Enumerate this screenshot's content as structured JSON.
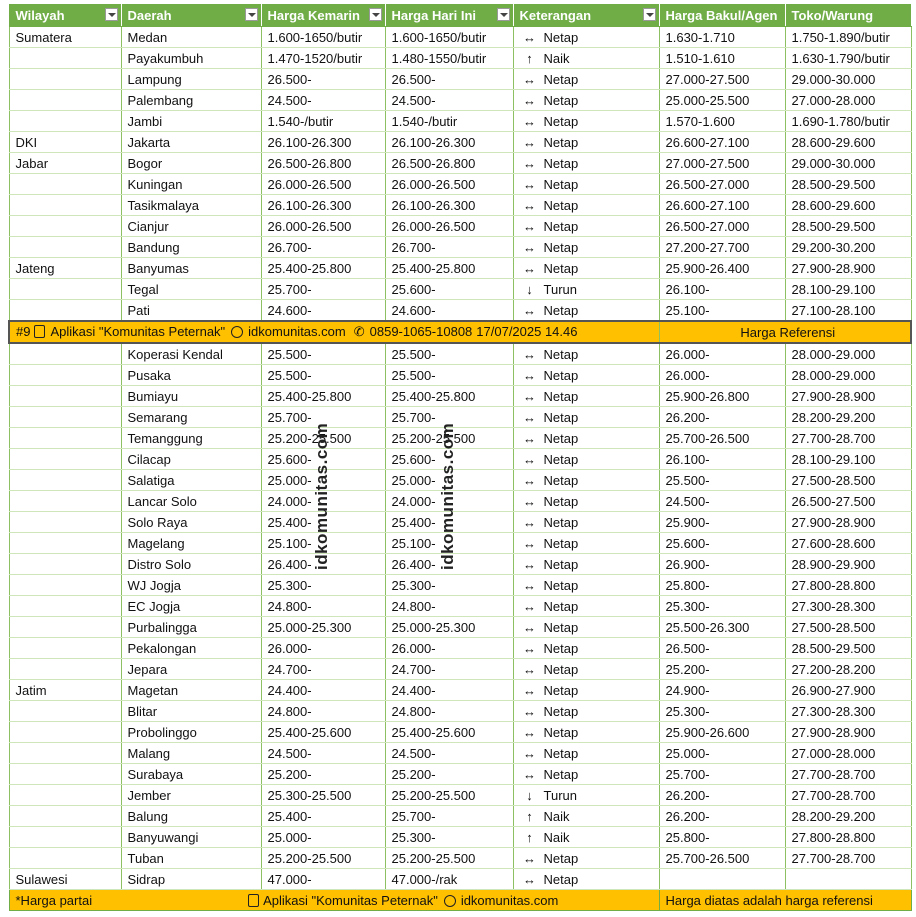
{
  "table": {
    "header": [
      "Wilayah",
      "Daerah",
      "Harga Kemarin",
      "Harga Hari Ini",
      "Keterangan",
      "Harga Bakul/Agen",
      "Toko/Warung"
    ],
    "rows_a": [
      [
        "Sumatera",
        "Medan",
        "1.600-1650/butir",
        "1.600-1650/butir",
        "↔",
        "Netap",
        "1.630-1.710",
        "1.750-1.890/butir"
      ],
      [
        null,
        "Payakumbuh",
        "1.470-1520/butir",
        "1.480-1550/butir",
        "↑",
        "Naik",
        "1.510-1.610",
        "1.630-1.790/butir"
      ],
      [
        null,
        "Lampung",
        "26.500-",
        "26.500-",
        "↔",
        "Netap",
        "27.000-27.500",
        "29.000-30.000"
      ],
      [
        null,
        "Palembang",
        "24.500-",
        "24.500-",
        "↔",
        "Netap",
        "25.000-25.500",
        "27.000-28.000"
      ],
      [
        null,
        "Jambi",
        "1.540-/butir",
        "1.540-/butir",
        "↔",
        "Netap",
        "1.570-1.600",
        "1.690-1.780/butir"
      ],
      [
        "DKI",
        "Jakarta",
        "26.100-26.300",
        "26.100-26.300",
        "↔",
        "Netap",
        "26.600-27.100",
        "28.600-29.600"
      ],
      [
        "Jabar",
        "Bogor",
        "26.500-26.800",
        "26.500-26.800",
        "↔",
        "Netap",
        "27.000-27.500",
        "29.000-30.000"
      ],
      [
        null,
        "Kuningan",
        "26.000-26.500",
        "26.000-26.500",
        "↔",
        "Netap",
        "26.500-27.000",
        "28.500-29.500"
      ],
      [
        null,
        "Tasikmalaya",
        "26.100-26.300",
        "26.100-26.300",
        "↔",
        "Netap",
        "26.600-27.100",
        "28.600-29.600"
      ],
      [
        null,
        "Cianjur",
        "26.000-26.500",
        "26.000-26.500",
        "↔",
        "Netap",
        "26.500-27.000",
        "28.500-29.500"
      ],
      [
        null,
        "Bandung",
        "26.700-",
        "26.700-",
        "↔",
        "Netap",
        "27.200-27.700",
        "29.200-30.200"
      ],
      [
        "Jateng",
        "Banyumas",
        "25.400-25.800",
        "25.400-25.800",
        "↔",
        "Netap",
        "25.900-26.400",
        "27.900-28.900"
      ],
      [
        null,
        "Tegal",
        "25.700-",
        "25.600-",
        "↓",
        "Turun",
        "26.100-",
        "28.100-29.100"
      ],
      [
        null,
        "Pati",
        "24.600-",
        "24.600-",
        "↔",
        "Netap",
        "25.100-",
        "27.100-28.100"
      ]
    ],
    "banner": {
      "number": "#9",
      "app": "Aplikasi \"Komunitas Peternak\"",
      "site": "idkomunitas.com",
      "phone": "0859-1065-10808",
      "datetime": "17/07/2025 14.46",
      "right": "Harga Referensi"
    },
    "rows_b": [
      [
        null,
        "Koperasi Kendal",
        "25.500-",
        "25.500-",
        "↔",
        "Netap",
        "26.000-",
        "28.000-29.000"
      ],
      [
        null,
        "Pusaka",
        "25.500-",
        "25.500-",
        "↔",
        "Netap",
        "26.000-",
        "28.000-29.000"
      ],
      [
        null,
        "Bumiayu",
        "25.400-25.800",
        "25.400-25.800",
        "↔",
        "Netap",
        "25.900-26.800",
        "27.900-28.900"
      ],
      [
        null,
        "Semarang",
        "25.700-",
        "25.700-",
        "↔",
        "Netap",
        "26.200-",
        "28.200-29.200"
      ],
      [
        null,
        "Temanggung",
        "25.200-25.500",
        "25.200-25.500",
        "↔",
        "Netap",
        "25.700-26.500",
        "27.700-28.700"
      ],
      [
        null,
        "Cilacap",
        "25.600-",
        "25.600-",
        "↔",
        "Netap",
        "26.100-",
        "28.100-29.100"
      ],
      [
        null,
        "Salatiga",
        "25.000-",
        "25.000-",
        "↔",
        "Netap",
        "25.500-",
        "27.500-28.500"
      ],
      [
        null,
        "Lancar Solo",
        "24.000-",
        "24.000-",
        "↔",
        "Netap",
        "24.500-",
        "26.500-27.500"
      ],
      [
        null,
        "Solo Raya",
        "25.400-",
        "25.400-",
        "↔",
        "Netap",
        "25.900-",
        "27.900-28.900"
      ],
      [
        null,
        "Magelang",
        "25.100-",
        "25.100-",
        "↔",
        "Netap",
        "25.600-",
        "27.600-28.600"
      ],
      [
        null,
        "Distro Solo",
        "26.400-",
        "26.400-",
        "↔",
        "Netap",
        "26.900-",
        "28.900-29.900"
      ],
      [
        null,
        "WJ Jogja",
        "25.300-",
        "25.300-",
        "↔",
        "Netap",
        "25.800-",
        "27.800-28.800"
      ],
      [
        null,
        "EC Jogja",
        "24.800-",
        "24.800-",
        "↔",
        "Netap",
        "25.300-",
        "27.300-28.300"
      ],
      [
        null,
        "Purbalingga",
        "25.000-25.300",
        "25.000-25.300",
        "↔",
        "Netap",
        "25.500-26.300",
        "27.500-28.500"
      ],
      [
        null,
        "Pekalongan",
        "26.000-",
        "26.000-",
        "↔",
        "Netap",
        "26.500-",
        "28.500-29.500"
      ],
      [
        null,
        "Jepara",
        "24.700-",
        "24.700-",
        "↔",
        "Netap",
        "25.200-",
        "27.200-28.200"
      ],
      [
        "Jatim",
        "Magetan",
        "24.400-",
        "24.400-",
        "↔",
        "Netap",
        "24.900-",
        "26.900-27.900"
      ],
      [
        null,
        "Blitar",
        "24.800-",
        "24.800-",
        "↔",
        "Netap",
        "25.300-",
        "27.300-28.300"
      ],
      [
        null,
        "Probolinggo",
        "25.400-25.600",
        "25.400-25.600",
        "↔",
        "Netap",
        "25.900-26.600",
        "27.900-28.900"
      ],
      [
        null,
        "Malang",
        "24.500-",
        "24.500-",
        "↔",
        "Netap",
        "25.000-",
        "27.000-28.000"
      ],
      [
        null,
        "Surabaya",
        "25.200-",
        "25.200-",
        "↔",
        "Netap",
        "25.700-",
        "27.700-28.700"
      ],
      [
        null,
        "Jember",
        "25.300-25.500",
        "25.200-25.500",
        "↓",
        "Turun",
        "26.200-",
        "27.700-28.700"
      ],
      [
        null,
        "Balung",
        "25.400-",
        "25.700-",
        "↑",
        "Naik",
        "26.200-",
        "28.200-29.200"
      ],
      [
        null,
        "Banyuwangi",
        "25.000-",
        "25.300-",
        "↑",
        "Naik",
        "25.800-",
        "27.800-28.800"
      ],
      [
        null,
        "Tuban",
        "25.200-25.500",
        "25.200-25.500",
        "↔",
        "Netap",
        "25.700-26.500",
        "27.700-28.700"
      ],
      [
        "Sulawesi",
        "Sidrap",
        "47.000-",
        "47.000-/rak",
        "↔",
        "Netap",
        null,
        null
      ]
    ],
    "footer": {
      "left": "*Harga partai",
      "app": "Aplikasi \"Komunitas Peternak\"",
      "site": "idkomunitas.com",
      "right": "Harga diatas adalah harga referensi"
    },
    "watermark": "idkomunitas.com"
  }
}
